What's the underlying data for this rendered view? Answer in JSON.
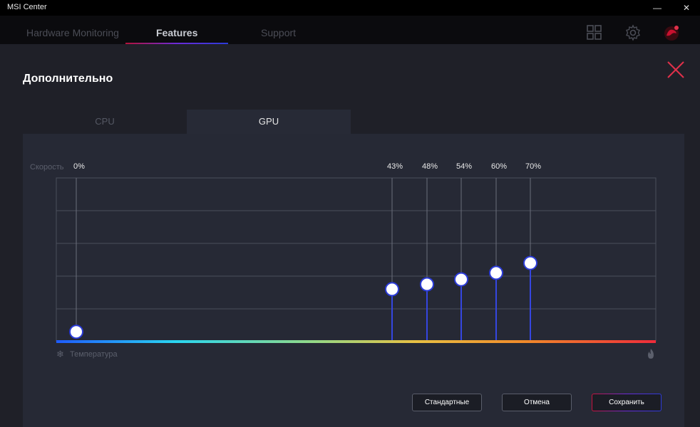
{
  "window": {
    "title": "MSI Center",
    "minimize": "—",
    "maximize": "☐",
    "close": "✕"
  },
  "nav": {
    "tabs": [
      {
        "label": "Hardware Monitoring"
      },
      {
        "label": "Features"
      },
      {
        "label": "Support"
      }
    ],
    "active_tab": "Features",
    "icons": [
      "grid-icon",
      "gear-icon",
      "msi-dragon-icon"
    ]
  },
  "panel": {
    "title": "Дополнительно"
  },
  "subtabs": [
    {
      "label": "CPU"
    },
    {
      "label": "GPU"
    }
  ],
  "active_subtab": "GPU",
  "chart": {
    "speed_label": "Скорость",
    "temperature_label": "Температура",
    "points": [
      {
        "label": "0%"
      },
      {
        "label": "43%"
      },
      {
        "label": "48%"
      },
      {
        "label": "54%"
      },
      {
        "label": "60%"
      },
      {
        "label": "70%"
      }
    ]
  },
  "chart_data": {
    "type": "line",
    "series": [
      {
        "values": [
          0.06,
          0.32,
          0.35,
          0.38,
          0.42,
          0.48
        ]
      }
    ],
    "x": [
      0,
      43,
      48,
      54,
      60,
      70
    ],
    "x_scale_max": 100,
    "ylim": [
      0,
      1
    ]
  },
  "buttons": {
    "default_label": "Стандартные",
    "cancel_label": "Отмена",
    "save_label": "Сохранить"
  },
  "colors": {
    "accent_red": "#e0304a",
    "accent_blue": "#2b3bd8",
    "line_blue": "#3546e0"
  }
}
